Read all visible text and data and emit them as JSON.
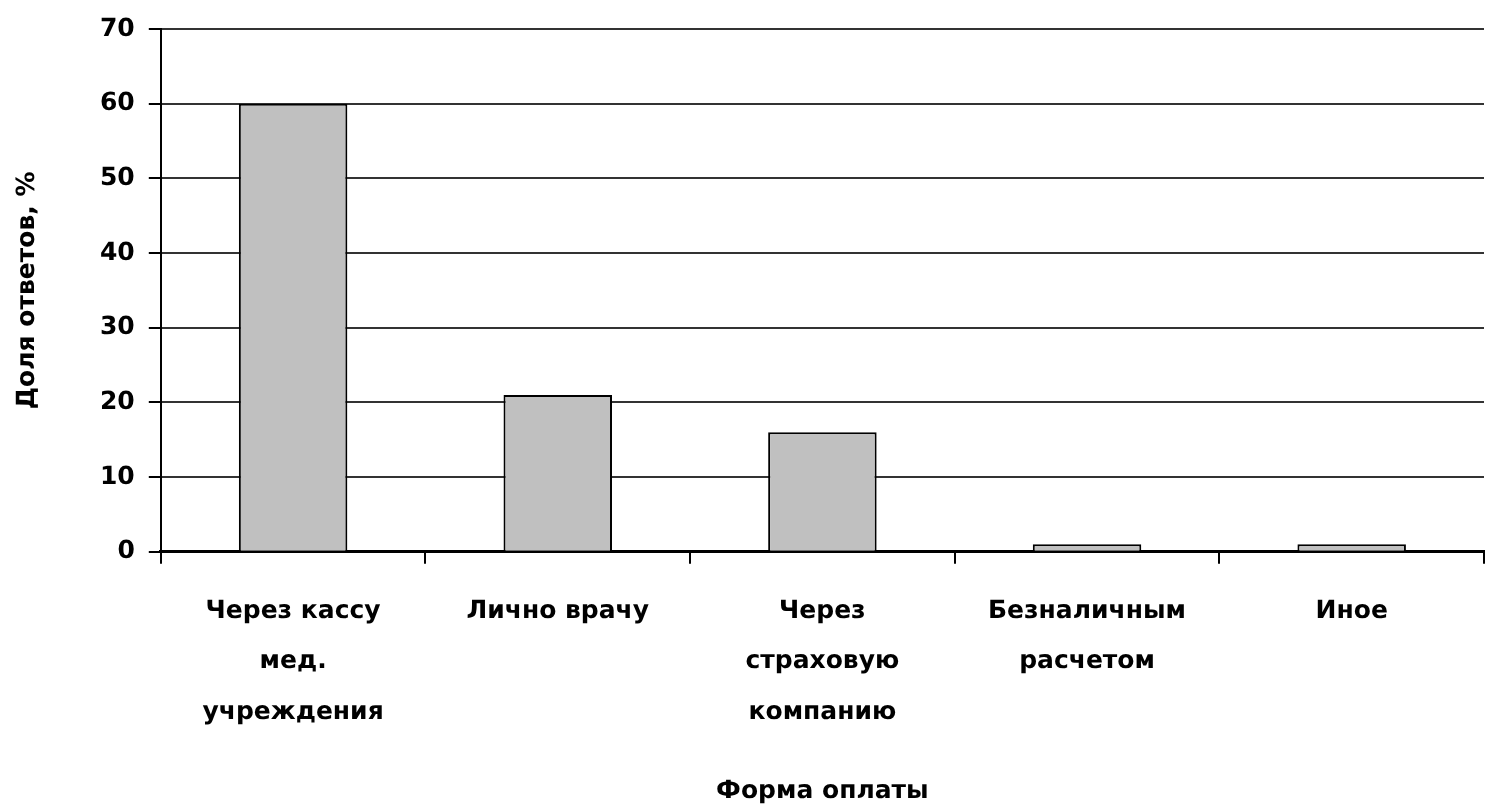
{
  "chart_data": {
    "type": "bar",
    "categories": [
      "Через кассу мед. учреждения",
      "Лично врачу",
      "Через страховую компанию",
      "Безналичным расчетом",
      "Иное"
    ],
    "values": [
      60,
      21,
      16,
      1,
      1
    ],
    "color": "#c0c0c0",
    "xlabel": "Форма оплаты",
    "ylabel": "Доля ответов, %",
    "ylim": [
      0,
      70
    ],
    "yticks": [
      0,
      10,
      20,
      30,
      40,
      50,
      60,
      70
    ],
    "grid": "y"
  }
}
